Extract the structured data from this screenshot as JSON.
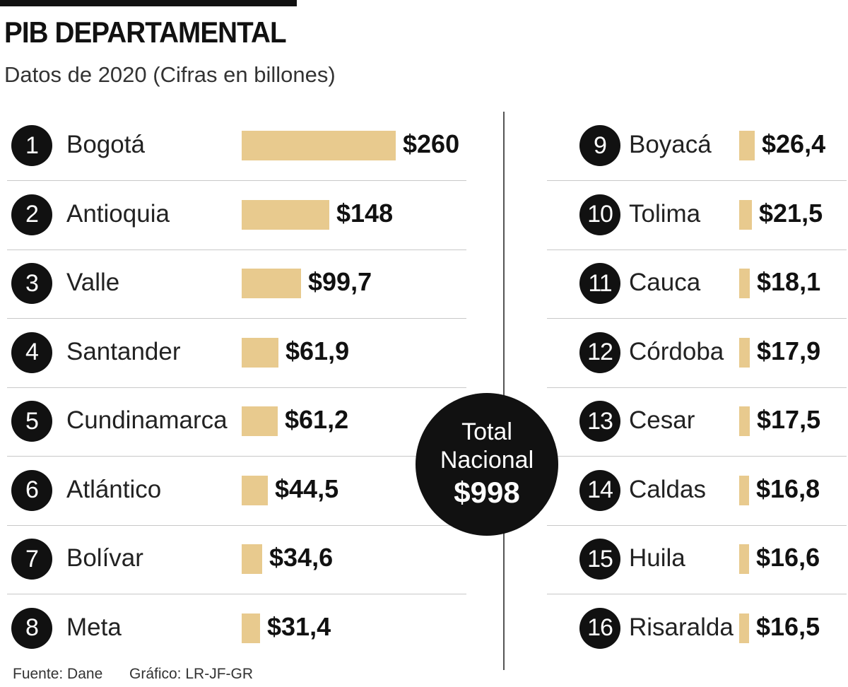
{
  "header": {
    "title": "PIB DEPARTAMENTAL",
    "subtitle": "Datos de 2020 (Cifras en billones)"
  },
  "total": {
    "label_line1": "Total",
    "label_line2": "Nacional",
    "value_label": "$998",
    "value": 998
  },
  "footer": {
    "source": "Fuente: Dane",
    "credit": "Gráfico: LR-JF-GR"
  },
  "colors": {
    "bar": "#e8ca8e",
    "circle": "#111111",
    "text": "#111111"
  },
  "chart_data": {
    "type": "bar",
    "title": "PIB DEPARTAMENTAL",
    "subtitle": "Datos de 2020 (Cifras en billones)",
    "orientation": "horizontal",
    "categories": [
      "Bogotá",
      "Antioquia",
      "Valle",
      "Santander",
      "Cundinamarca",
      "Atlántico",
      "Bolívar",
      "Meta",
      "Boyacá",
      "Tolima",
      "Cauca",
      "Córdoba",
      "Cesar",
      "Caldas",
      "Huila",
      "Risaralda"
    ],
    "values": [
      260,
      148,
      99.7,
      61.9,
      61.2,
      44.5,
      34.6,
      31.4,
      26.4,
      21.5,
      18.1,
      17.9,
      17.5,
      16.8,
      16.6,
      16.5
    ],
    "ranks": [
      "1",
      "2",
      "3",
      "4",
      "5",
      "6",
      "7",
      "8",
      "9",
      "10",
      "11",
      "12",
      "13",
      "14",
      "15",
      "16"
    ],
    "value_labels": [
      "$260",
      "$148",
      "$99,7",
      "$61,9",
      "$61,2",
      "$44,5",
      "$34,6",
      "$31,4",
      "$26,4",
      "$21,5",
      "$18,1",
      "$17,9",
      "$17,5",
      "$16,8",
      "$16,6",
      "$16,5"
    ]
  }
}
